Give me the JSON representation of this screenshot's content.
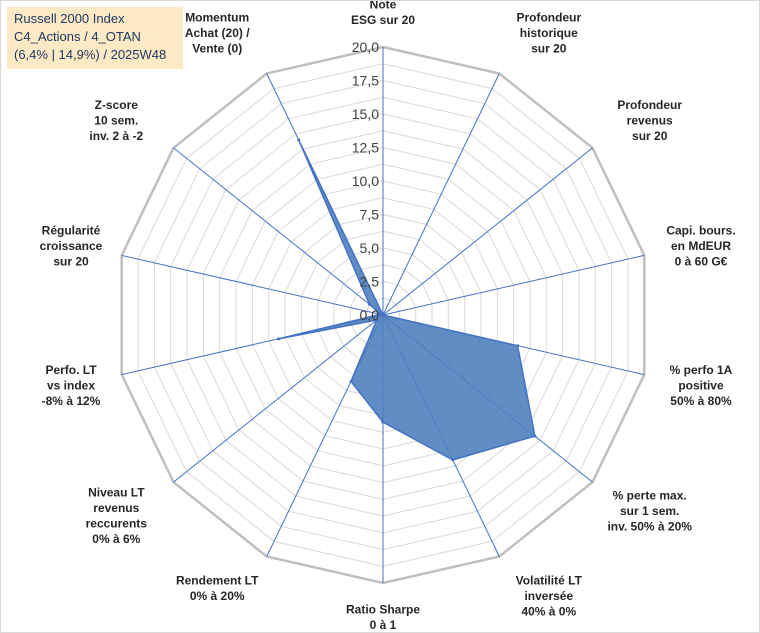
{
  "chart_data": {
    "type": "radar",
    "title_lines": [
      "Russell 2000 Index",
      "C4_Actions / 4_OTAN",
      "(6,4% | 14,9%) / 2025W48"
    ],
    "rmax": 20,
    "ticks": [
      "0,0",
      "2,5",
      "5,0",
      "7,5",
      "10,0",
      "12,5",
      "15,0",
      "17,5",
      "20,0"
    ],
    "tick_values": [
      0,
      2.5,
      5,
      7.5,
      10,
      12.5,
      15,
      17.5,
      20
    ],
    "gridline_step": 1.25,
    "axes": [
      {
        "label": [
          "Note",
          "ESG sur 20"
        ],
        "value": 0
      },
      {
        "label": [
          "Profondeur",
          "historique",
          "sur 20"
        ],
        "value": 0
      },
      {
        "label": [
          "Profondeur",
          "revenus",
          "sur 20"
        ],
        "value": 0
      },
      {
        "label": [
          "Capi. bours.",
          "en MdEUR",
          "0 à 60 G€"
        ],
        "value": 0
      },
      {
        "label": [
          "% perfo 1A",
          "positive",
          "50% à 80%"
        ],
        "value": 10.3
      },
      {
        "label": [
          "% perte max.",
          "sur 1 sem.",
          "inv. 50% à 20%"
        ],
        "value": 14.5
      },
      {
        "label": [
          "Volatilité LT",
          "inversée",
          "40% à 0%"
        ],
        "value": 12.0
      },
      {
        "label": [
          "Ratio Sharpe",
          "0 à 1"
        ],
        "value": 8.0
      },
      {
        "label": [
          "Rendement LT",
          "0% à 20%"
        ],
        "value": 5.5
      },
      {
        "label": [
          "Niveau LT",
          "revenus",
          "reccurents",
          "0% à 6%"
        ],
        "value": 0.6
      },
      {
        "label": [
          "Perfo. LT",
          "vs index",
          "-8% à 12%"
        ],
        "value": 8.0
      },
      {
        "label": [
          "Régularité",
          "croissance",
          "sur 20"
        ],
        "value": 0.2
      },
      {
        "label": [
          "Z-score",
          "10 sem.",
          "inv. 2 à -2"
        ],
        "value": 1.3
      },
      {
        "label": [
          "Momentum",
          "Achat (20) /",
          "Vente (0)"
        ],
        "value": 14.5
      }
    ],
    "series": [
      {
        "name": "Russell 2000 Index",
        "color": "#4f81bd"
      }
    ],
    "colors": {
      "grid": "#d9d9d9",
      "outer": "#bfbfbf",
      "spoke": "#4472c4",
      "fill": "#4f81bd",
      "stroke": "#4472c4"
    }
  }
}
